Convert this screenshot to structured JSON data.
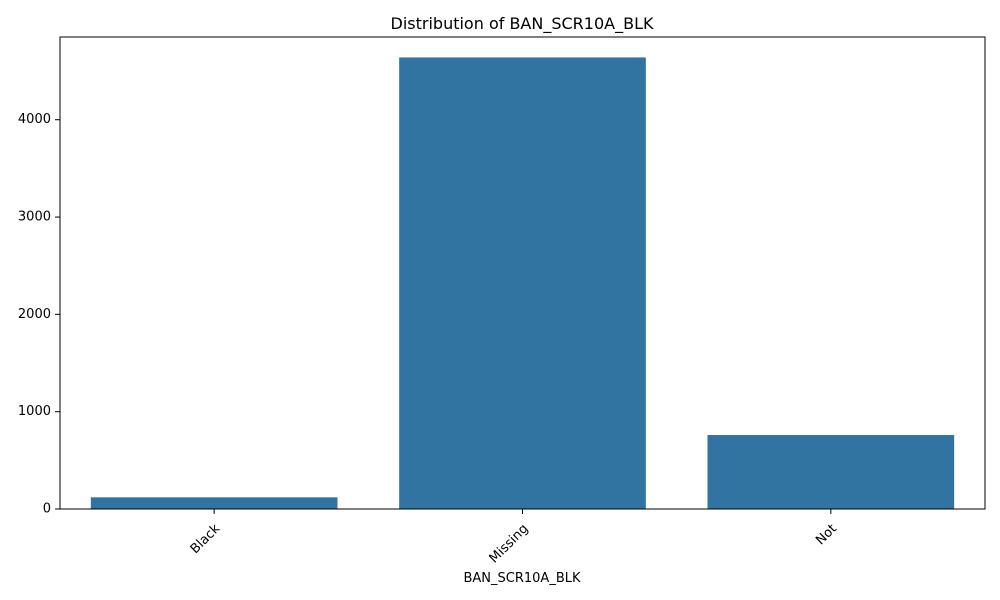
{
  "chart_data": {
    "type": "bar",
    "title": "Distribution of BAN_SCR10A_BLK",
    "xlabel": "BAN_SCR10A_BLK",
    "ylabel": "",
    "categories": [
      "Black",
      "Missing",
      "Not"
    ],
    "values": [
      120,
      4640,
      760
    ],
    "ylim": [
      0,
      4850
    ],
    "yticks": [
      0,
      1000,
      2000,
      3000,
      4000
    ],
    "bar_color": "#3274a1",
    "grid": false,
    "legend": "none"
  }
}
